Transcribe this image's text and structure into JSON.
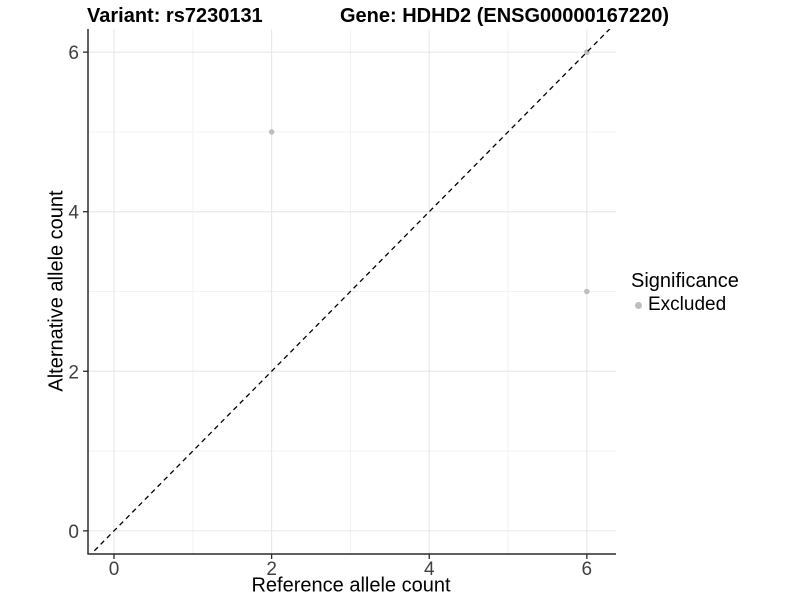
{
  "figure": {
    "title_variant": "Variant: rs7230131",
    "title_gene": "Gene: HDHD2 (ENSG00000167220)"
  },
  "legend": {
    "title": "Significance",
    "items": [
      {
        "label": "Excluded",
        "color": "#bebebe"
      }
    ]
  },
  "chart_data": {
    "type": "scatter",
    "title": "Variant: rs7230131 | Gene: HDHD2 (ENSG00000167220)",
    "xlabel": "Reference allele count",
    "ylabel": "Alternative allele count",
    "xlim": [
      -0.33,
      6.37
    ],
    "ylim": [
      -0.29,
      6.29
    ],
    "xticks": [
      0,
      2,
      4,
      6
    ],
    "yticks": [
      0,
      2,
      4,
      6
    ],
    "minor_xticks": [
      1,
      3,
      5
    ],
    "minor_yticks": [
      1,
      3,
      5
    ],
    "grid": true,
    "legend_position": "right",
    "series": [
      {
        "name": "Excluded",
        "color": "#bebebe",
        "marker": "circle",
        "points": [
          {
            "x": 2,
            "y": 5
          },
          {
            "x": 6,
            "y": 6
          },
          {
            "x": 6,
            "y": 3
          }
        ]
      }
    ],
    "identity_line": {
      "slope": 1,
      "intercept": 0,
      "style": "dashed",
      "color": "#000000"
    }
  },
  "colors": {
    "background": "#ffffff",
    "grid_major": "#e6e6e6",
    "grid_minor": "#f2f2f2",
    "axis_line": "#2b2b2b",
    "tick_label": "#404040",
    "point": "#bebebe"
  }
}
